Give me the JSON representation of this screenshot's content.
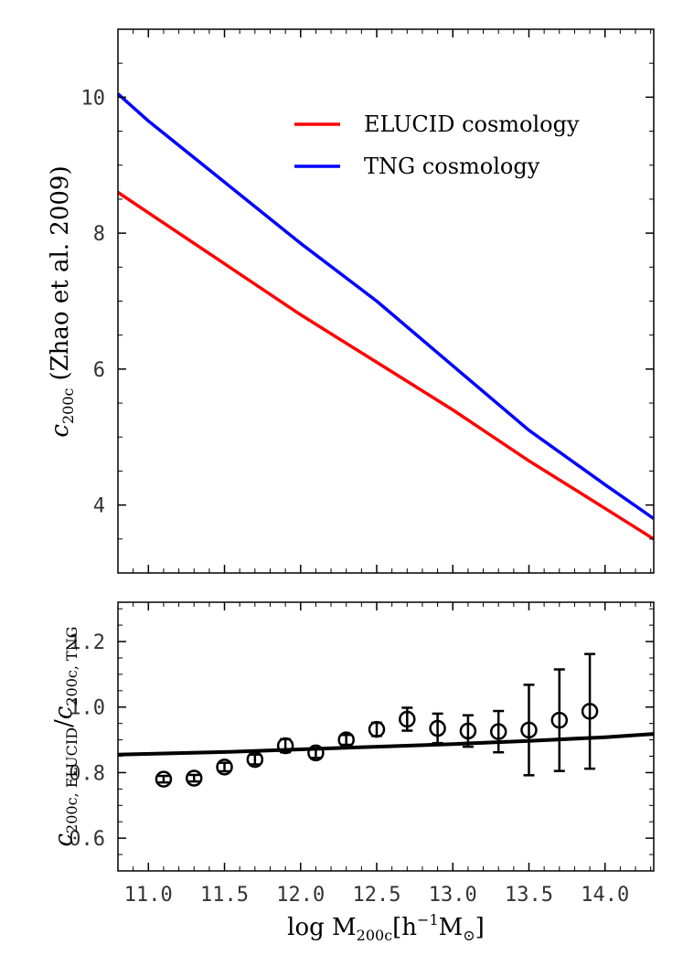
{
  "chart_data": [
    {
      "type": "line",
      "panel": "top",
      "title": "",
      "ylabel": "c",
      "ylabel_sub": "200c",
      "ylabel_suffix": "(Zhao et al. 2009)",
      "xlim": [
        10.8,
        14.32
      ],
      "ylim": [
        3.0,
        11.0
      ],
      "yticks": [
        4,
        6,
        8,
        10
      ],
      "ytick_labels": [
        "4",
        "6",
        "8",
        "10"
      ],
      "xticks": [
        11.0,
        11.5,
        12.0,
        12.5,
        13.0,
        13.5,
        14.0
      ],
      "legend_position": "top-right",
      "series": [
        {
          "name": "ELUCID cosmology",
          "color": "#ff0000",
          "x": [
            10.8,
            11.0,
            11.5,
            12.0,
            12.5,
            13.0,
            13.5,
            14.0,
            14.32
          ],
          "y": [
            8.6,
            8.3,
            7.55,
            6.8,
            6.1,
            5.4,
            4.65,
            3.95,
            3.5
          ]
        },
        {
          "name": "TNG cosmology",
          "color": "#0000ff",
          "x": [
            10.8,
            11.0,
            11.5,
            12.0,
            12.5,
            13.0,
            13.5,
            14.0,
            14.32
          ],
          "y": [
            10.05,
            9.65,
            8.75,
            7.85,
            7.0,
            6.05,
            5.1,
            4.3,
            3.8
          ]
        }
      ]
    },
    {
      "type": "scatter",
      "panel": "bottom",
      "title": "",
      "ylabel": "c",
      "ylabel_sub_num": "200c, ELUCID",
      "ylabel_slash": "/",
      "ylabel_sub_den": "200c, TNG",
      "xlabel": "log M",
      "xlabel_sub": "200c",
      "xlabel_bracket": "[h",
      "xlabel_sup": "−1",
      "xlabel_unit": "M",
      "xlabel_sun": "⊙",
      "xlabel_close": "]",
      "xlim": [
        10.8,
        14.32
      ],
      "ylim": [
        0.5,
        1.32
      ],
      "yticks": [
        0.6,
        0.8,
        1.0,
        1.2
      ],
      "ytick_labels": [
        "0.6",
        "0.8",
        "1.0",
        "1.2"
      ],
      "xticks": [
        11.0,
        11.5,
        12.0,
        12.5,
        13.0,
        13.5,
        14.0
      ],
      "xtick_labels": [
        "11.0",
        "11.5",
        "12.0",
        "12.5",
        "13.0",
        "13.5",
        "14.0"
      ],
      "ratio_line": {
        "color": "#000000",
        "x": [
          10.8,
          11.5,
          12.0,
          12.5,
          13.0,
          13.5,
          14.0,
          14.32
        ],
        "y": [
          0.855,
          0.863,
          0.871,
          0.879,
          0.887,
          0.897,
          0.908,
          0.918
        ]
      },
      "points": {
        "x": [
          11.1,
          11.3,
          11.5,
          11.7,
          11.9,
          12.1,
          12.3,
          12.5,
          12.7,
          12.9,
          13.1,
          13.3,
          13.5,
          13.7,
          13.9
        ],
        "y": [
          0.78,
          0.783,
          0.817,
          0.84,
          0.882,
          0.86,
          0.9,
          0.932,
          0.963,
          0.935,
          0.927,
          0.925,
          0.93,
          0.96,
          0.987
        ],
        "err": [
          0.01,
          0.01,
          0.013,
          0.015,
          0.02,
          0.015,
          0.015,
          0.02,
          0.035,
          0.045,
          0.048,
          0.063,
          0.138,
          0.155,
          0.175
        ]
      }
    }
  ]
}
